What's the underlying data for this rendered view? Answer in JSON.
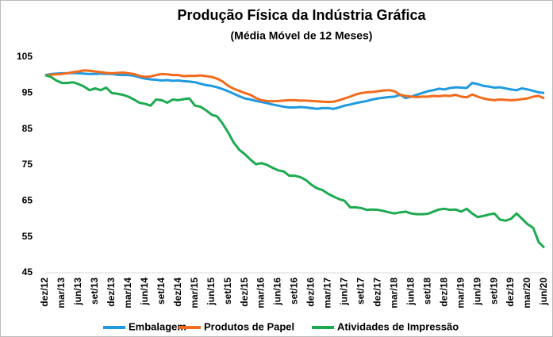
{
  "chart_data": {
    "type": "line",
    "title": "Produção Física da Indústria Gráfica",
    "subtitle": "(Média Móvel de 12 Meses)",
    "categories": [
      "dez/12",
      null,
      null,
      "mar/13",
      null,
      null,
      "jun/13",
      null,
      null,
      "set/13",
      null,
      null,
      "dez/13",
      null,
      null,
      "mar/14",
      null,
      null,
      "jun/14",
      null,
      null,
      "set/14",
      null,
      null,
      "dez/14",
      null,
      null,
      "mar/15",
      null,
      null,
      "jun/15",
      null,
      null,
      "set/15",
      null,
      null,
      "dez/15",
      null,
      null,
      "mar/16",
      null,
      null,
      "jun/16",
      null,
      null,
      "set/16",
      null,
      null,
      "dez/16",
      null,
      null,
      "mar/17",
      null,
      null,
      "jun/17",
      null,
      null,
      "set/17",
      null,
      null,
      "dez/17",
      null,
      null,
      "mar/18",
      null,
      null,
      "jun/18",
      null,
      null,
      "set/18",
      null,
      null,
      "dez/18",
      null,
      null,
      "mar/19",
      null,
      null,
      "jun/19",
      null,
      null,
      "set/19",
      null,
      null,
      "dez/19",
      null,
      null,
      "mar/20",
      null,
      null,
      "jun/20"
    ],
    "series": [
      {
        "name": "Embalagem",
        "color": "#1f9ae0",
        "values": [
          100,
          100.3,
          100.4,
          100.5,
          100.5,
          100.6,
          100.5,
          100.4,
          100.3,
          100.3,
          100.4,
          100.3,
          100.3,
          100.1,
          100,
          100,
          99.8,
          99.4,
          99,
          98.8,
          98.7,
          98.5,
          98.6,
          98.4,
          98.5,
          98.3,
          98.2,
          98,
          97.6,
          97.2,
          97,
          96.6,
          96.1,
          95.5,
          94.8,
          94.1,
          93.5,
          93.2,
          92.8,
          92.5,
          92.2,
          91.8,
          91.5,
          91.2,
          91,
          91,
          91.1,
          91,
          90.8,
          90.6,
          90.8,
          90.8,
          90.6,
          91,
          91.5,
          91.8,
          92.2,
          92.5,
          92.8,
          93.2,
          93.5,
          93.7,
          93.9,
          94,
          94.5,
          93.6,
          94,
          94.5,
          95,
          95.5,
          95.8,
          96.2,
          96,
          96.4,
          96.6,
          96.5,
          96.4,
          97.8,
          97.5,
          97,
          96.8,
          96.5,
          96.6,
          96.3,
          96,
          95.8,
          96.3,
          96,
          95.6,
          95.2,
          95
        ]
      },
      {
        "name": "Produtos de Papel",
        "color": "#f26b1d",
        "values": [
          100,
          100.1,
          100.2,
          100.3,
          100.5,
          100.8,
          101,
          101.3,
          101.2,
          101,
          100.8,
          100.6,
          100.5,
          100.6,
          100.7,
          100.5,
          100.3,
          99.8,
          99.5,
          99.6,
          100,
          100.3,
          100.2,
          100,
          100,
          99.7,
          99.8,
          99.8,
          99.9,
          99.7,
          99.5,
          99,
          98.2,
          97,
          96.2,
          95.6,
          95,
          94.5,
          93.6,
          93,
          92.8,
          92.7,
          92.8,
          92.9,
          93,
          93,
          92.9,
          92.9,
          92.8,
          92.7,
          92.6,
          92.5,
          92.6,
          93,
          93.5,
          94,
          94.6,
          95,
          95.2,
          95.3,
          95.5,
          95.7,
          95.8,
          95.5,
          94.5,
          94.2,
          94,
          93.9,
          94,
          94,
          94.2,
          94.1,
          94.3,
          94.2,
          94.5,
          94,
          93.8,
          94.6,
          94,
          93.5,
          93.2,
          93,
          93.2,
          93.1,
          93,
          93.1,
          93.3,
          93.5,
          94,
          94.2,
          93.5
        ]
      },
      {
        "name": "Atividades de Impressão",
        "color": "#1eaa50",
        "values": [
          100,
          99.5,
          98.5,
          97.8,
          97.8,
          98,
          97.5,
          96.8,
          95.8,
          96.3,
          95.8,
          96.5,
          95,
          94.8,
          94.5,
          94,
          93.2,
          92.3,
          92,
          91.5,
          93.2,
          93,
          92.3,
          93.2,
          93,
          93.3,
          93.5,
          91.5,
          91.2,
          90.2,
          89,
          88.5,
          86.5,
          84,
          81.2,
          79.2,
          78,
          76.5,
          75.2,
          75.5,
          75,
          74.2,
          73.5,
          73.2,
          72,
          72,
          71.6,
          70.8,
          69.5,
          68.5,
          68,
          67,
          66.2,
          65.5,
          65,
          63.2,
          63.2,
          63,
          62.5,
          62.6,
          62.5,
          62.2,
          61.8,
          61.5,
          61.8,
          62,
          61.5,
          61.3,
          61.3,
          61.4,
          62,
          62.6,
          62.8,
          62.5,
          62.6,
          62,
          62.8,
          61.5,
          60.5,
          60.8,
          61.2,
          61.5,
          59.8,
          59.5,
          60,
          61.5,
          60,
          58.5,
          57.5,
          53.5,
          52
        ]
      }
    ],
    "ylim": [
      45,
      105
    ],
    "yticks": [
      45,
      55,
      65,
      75,
      85,
      95,
      105
    ],
    "grid": false,
    "legend": "bottom"
  }
}
